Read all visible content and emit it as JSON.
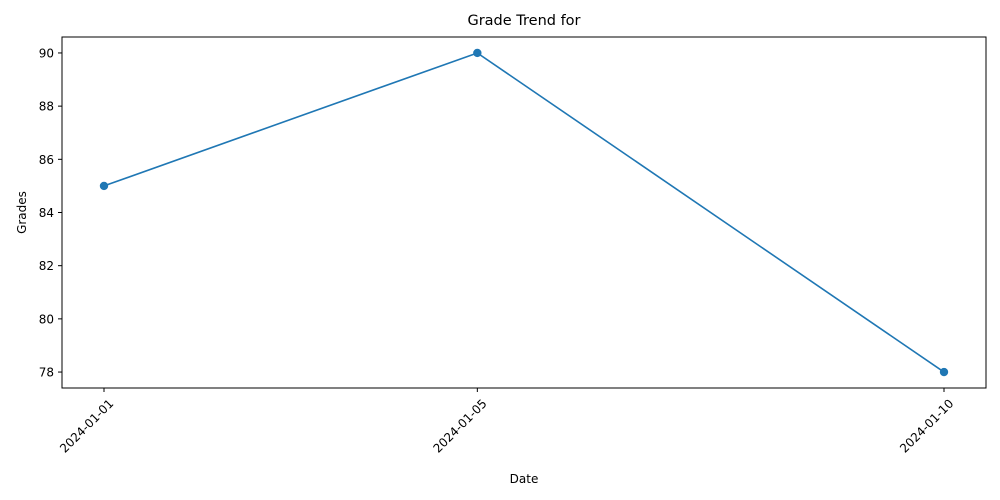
{
  "chart_data": {
    "type": "line",
    "title": "Grade Trend for",
    "xlabel": "Date",
    "ylabel": "Grades",
    "x": [
      "2024-01-01",
      "2024-01-05",
      "2024-01-10"
    ],
    "series": [
      {
        "values": [
          85,
          90,
          78
        ],
        "color": "#1f77b4",
        "marker": "circle"
      }
    ],
    "ylim": [
      77.4,
      90.6
    ],
    "yticks": [
      78,
      80,
      82,
      84,
      86,
      88,
      90
    ],
    "x_tick_rotation_deg": 45,
    "grid": false,
    "legend": "none"
  }
}
